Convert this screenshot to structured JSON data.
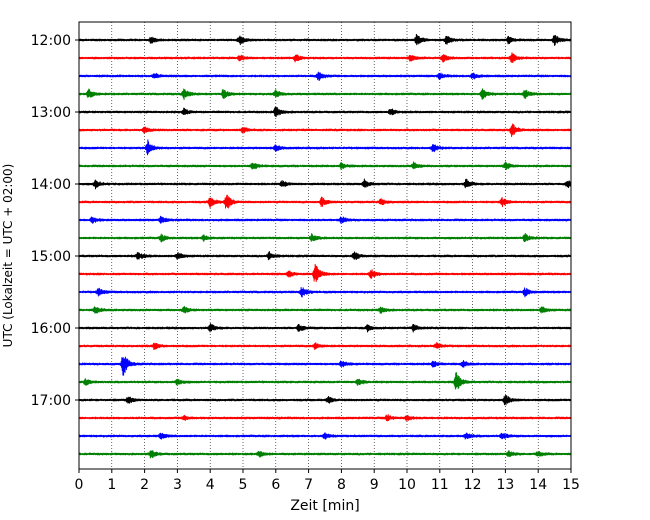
{
  "chart_data": {
    "type": "line",
    "xlabel": "Zeit  [min]",
    "ylabel": "UTC (Lokalzeit = UTC + 02:00)",
    "xlim": [
      0,
      15
    ],
    "x_ticks": [
      0,
      1,
      2,
      3,
      4,
      5,
      6,
      7,
      8,
      9,
      10,
      11,
      12,
      13,
      14,
      15
    ],
    "x_tick_labels": [
      "0",
      "1",
      "2",
      "3",
      "4",
      "5",
      "6",
      "7",
      "8",
      "9",
      "10",
      "11",
      "12",
      "13",
      "14",
      "15"
    ],
    "y_tick_labels": [
      "12:00",
      "13:00",
      "14:00",
      "15:00",
      "16:00",
      "17:00"
    ],
    "grid_x": true,
    "trace_colors": [
      "#000000",
      "#ff0000",
      "#0000ff",
      "#008000"
    ],
    "traces": [
      {
        "start": "12:00",
        "events": [
          [
            2.2,
            0.35
          ],
          [
            4.9,
            0.5
          ],
          [
            10.3,
            0.6
          ],
          [
            11.2,
            0.45
          ],
          [
            13.1,
            0.4
          ],
          [
            14.5,
            0.55
          ]
        ]
      },
      {
        "start": "12:15",
        "events": [
          [
            4.9,
            0.3
          ],
          [
            6.6,
            0.4
          ],
          [
            10.1,
            0.35
          ],
          [
            11.1,
            0.4
          ],
          [
            13.2,
            0.55
          ]
        ]
      },
      {
        "start": "12:30",
        "events": [
          [
            2.3,
            0.3
          ],
          [
            7.3,
            0.5
          ],
          [
            11.0,
            0.3
          ],
          [
            12.0,
            0.35
          ]
        ]
      },
      {
        "start": "12:45",
        "events": [
          [
            0.3,
            0.5
          ],
          [
            3.2,
            0.6
          ],
          [
            4.4,
            0.5
          ],
          [
            6.0,
            0.45
          ],
          [
            12.3,
            0.55
          ],
          [
            13.6,
            0.5
          ]
        ]
      },
      {
        "start": "13:00",
        "events": [
          [
            3.2,
            0.35
          ],
          [
            6.0,
            0.6
          ],
          [
            9.5,
            0.35
          ]
        ]
      },
      {
        "start": "13:15",
        "events": [
          [
            2.0,
            0.3
          ],
          [
            5.0,
            0.3
          ],
          [
            13.2,
            0.75
          ]
        ]
      },
      {
        "start": "13:30",
        "events": [
          [
            2.1,
            0.8
          ],
          [
            6.0,
            0.35
          ],
          [
            10.8,
            0.45
          ]
        ]
      },
      {
        "start": "13:45",
        "events": [
          [
            5.3,
            0.4
          ],
          [
            8.0,
            0.35
          ],
          [
            10.2,
            0.4
          ],
          [
            13.0,
            0.4
          ]
        ]
      },
      {
        "start": "14:00",
        "events": [
          [
            0.5,
            0.45
          ],
          [
            6.2,
            0.35
          ],
          [
            8.7,
            0.45
          ],
          [
            11.8,
            0.5
          ],
          [
            14.9,
            0.45
          ]
        ]
      },
      {
        "start": "14:15",
        "events": [
          [
            4.0,
            0.6
          ],
          [
            4.5,
            0.9
          ],
          [
            7.4,
            0.5
          ],
          [
            9.2,
            0.35
          ],
          [
            12.9,
            0.45
          ]
        ]
      },
      {
        "start": "14:30",
        "events": [
          [
            0.4,
            0.35
          ],
          [
            2.5,
            0.35
          ],
          [
            8.0,
            0.35
          ]
        ]
      },
      {
        "start": "14:45",
        "events": [
          [
            2.5,
            0.4
          ],
          [
            3.8,
            0.3
          ],
          [
            7.1,
            0.4
          ],
          [
            13.6,
            0.45
          ]
        ]
      },
      {
        "start": "15:00",
        "events": [
          [
            1.8,
            0.5
          ],
          [
            3.0,
            0.4
          ],
          [
            5.8,
            0.4
          ],
          [
            8.4,
            0.5
          ]
        ]
      },
      {
        "start": "15:15",
        "events": [
          [
            6.4,
            0.35
          ],
          [
            7.2,
            1.1
          ],
          [
            8.9,
            0.5
          ]
        ]
      },
      {
        "start": "15:30",
        "events": [
          [
            0.6,
            0.4
          ],
          [
            6.8,
            0.55
          ],
          [
            13.6,
            0.45
          ]
        ]
      },
      {
        "start": "15:45",
        "events": [
          [
            0.5,
            0.4
          ],
          [
            3.2,
            0.35
          ],
          [
            9.2,
            0.35
          ],
          [
            14.1,
            0.35
          ]
        ]
      },
      {
        "start": "16:00",
        "events": [
          [
            4.0,
            0.45
          ],
          [
            6.7,
            0.45
          ],
          [
            8.8,
            0.35
          ],
          [
            10.2,
            0.4
          ]
        ]
      },
      {
        "start": "16:15",
        "events": [
          [
            2.3,
            0.35
          ],
          [
            7.2,
            0.35
          ],
          [
            10.9,
            0.35
          ]
        ]
      },
      {
        "start": "16:30",
        "events": [
          [
            1.35,
            1.3
          ],
          [
            8.0,
            0.4
          ],
          [
            10.8,
            0.35
          ],
          [
            11.7,
            0.35
          ]
        ]
      },
      {
        "start": "16:45",
        "events": [
          [
            0.2,
            0.35
          ],
          [
            3.0,
            0.35
          ],
          [
            8.5,
            0.35
          ],
          [
            11.5,
            1.1
          ]
        ]
      },
      {
        "start": "17:00",
        "events": [
          [
            1.5,
            0.4
          ],
          [
            7.6,
            0.35
          ],
          [
            13.0,
            0.55
          ]
        ]
      },
      {
        "start": "17:15",
        "events": [
          [
            3.2,
            0.25
          ],
          [
            9.4,
            0.35
          ],
          [
            10.0,
            0.3
          ]
        ]
      },
      {
        "start": "17:30",
        "events": [
          [
            2.5,
            0.35
          ],
          [
            7.5,
            0.3
          ],
          [
            11.8,
            0.35
          ],
          [
            12.9,
            0.35
          ]
        ]
      },
      {
        "start": "17:45",
        "events": [
          [
            2.2,
            0.45
          ],
          [
            5.5,
            0.35
          ],
          [
            13.1,
            0.35
          ],
          [
            14.0,
            0.3
          ]
        ]
      }
    ]
  }
}
